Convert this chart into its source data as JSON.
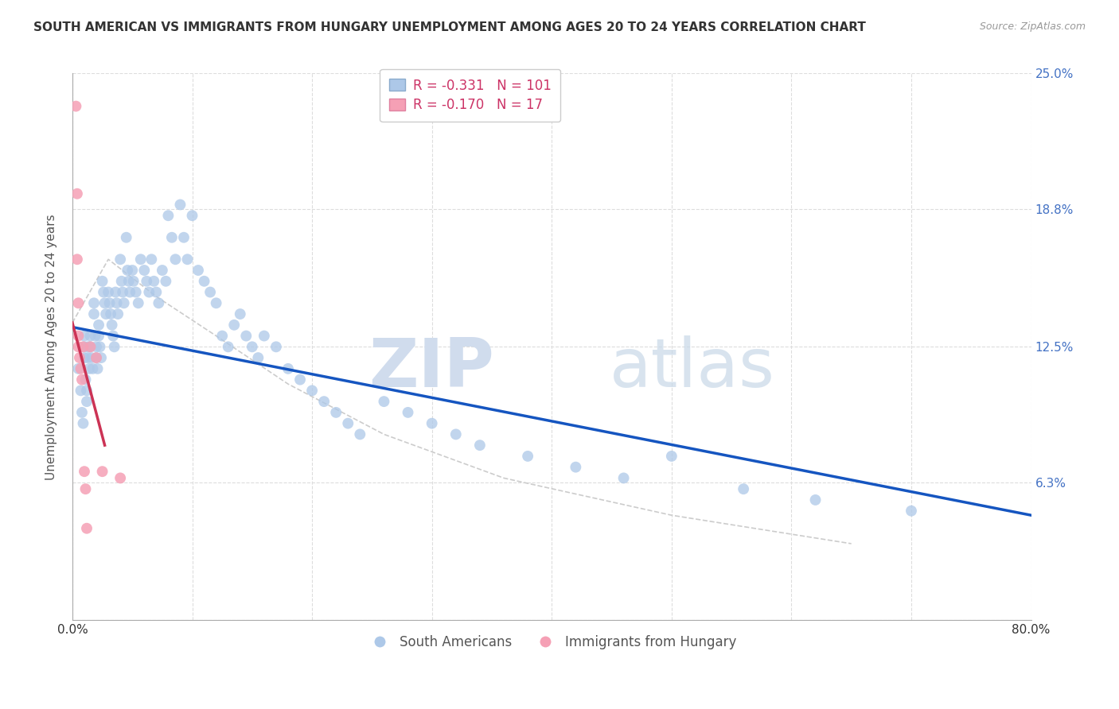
{
  "title": "SOUTH AMERICAN VS IMMIGRANTS FROM HUNGARY UNEMPLOYMENT AMONG AGES 20 TO 24 YEARS CORRELATION CHART",
  "source": "Source: ZipAtlas.com",
  "ylabel": "Unemployment Among Ages 20 to 24 years",
  "xlim": [
    0.0,
    0.8
  ],
  "ylim": [
    0.0,
    0.25
  ],
  "xticks": [
    0.0,
    0.1,
    0.2,
    0.3,
    0.4,
    0.5,
    0.6,
    0.7,
    0.8
  ],
  "xticklabels": [
    "0.0%",
    "",
    "",
    "",
    "",
    "",
    "",
    "",
    "80.0%"
  ],
  "yticks": [
    0.0,
    0.063,
    0.125,
    0.188,
    0.25
  ],
  "yticklabels": [
    "",
    "6.3%",
    "12.5%",
    "18.8%",
    "25.0%"
  ],
  "blue_R": "-0.331",
  "blue_N": "101",
  "pink_R": "-0.170",
  "pink_N": "17",
  "legend_label_blue": "South Americans",
  "legend_label_pink": "Immigrants from Hungary",
  "watermark_zip": "ZIP",
  "watermark_atlas": "atlas",
  "blue_scatter_x": [
    0.005,
    0.007,
    0.008,
    0.009,
    0.01,
    0.01,
    0.01,
    0.011,
    0.012,
    0.012,
    0.013,
    0.013,
    0.014,
    0.015,
    0.015,
    0.016,
    0.017,
    0.018,
    0.018,
    0.019,
    0.02,
    0.02,
    0.021,
    0.022,
    0.022,
    0.023,
    0.024,
    0.025,
    0.026,
    0.027,
    0.028,
    0.03,
    0.031,
    0.032,
    0.033,
    0.034,
    0.035,
    0.036,
    0.037,
    0.038,
    0.04,
    0.041,
    0.042,
    0.043,
    0.045,
    0.046,
    0.047,
    0.048,
    0.05,
    0.051,
    0.053,
    0.055,
    0.057,
    0.06,
    0.062,
    0.064,
    0.066,
    0.068,
    0.07,
    0.072,
    0.075,
    0.078,
    0.08,
    0.083,
    0.086,
    0.09,
    0.093,
    0.096,
    0.1,
    0.105,
    0.11,
    0.115,
    0.12,
    0.125,
    0.13,
    0.135,
    0.14,
    0.145,
    0.15,
    0.155,
    0.16,
    0.17,
    0.18,
    0.19,
    0.2,
    0.21,
    0.22,
    0.23,
    0.24,
    0.26,
    0.28,
    0.3,
    0.32,
    0.34,
    0.38,
    0.42,
    0.46,
    0.5,
    0.56,
    0.62,
    0.7
  ],
  "blue_scatter_y": [
    0.115,
    0.105,
    0.095,
    0.09,
    0.13,
    0.125,
    0.12,
    0.11,
    0.105,
    0.1,
    0.125,
    0.12,
    0.115,
    0.13,
    0.125,
    0.12,
    0.115,
    0.145,
    0.14,
    0.13,
    0.125,
    0.12,
    0.115,
    0.135,
    0.13,
    0.125,
    0.12,
    0.155,
    0.15,
    0.145,
    0.14,
    0.15,
    0.145,
    0.14,
    0.135,
    0.13,
    0.125,
    0.15,
    0.145,
    0.14,
    0.165,
    0.155,
    0.15,
    0.145,
    0.175,
    0.16,
    0.155,
    0.15,
    0.16,
    0.155,
    0.15,
    0.145,
    0.165,
    0.16,
    0.155,
    0.15,
    0.165,
    0.155,
    0.15,
    0.145,
    0.16,
    0.155,
    0.185,
    0.175,
    0.165,
    0.19,
    0.175,
    0.165,
    0.185,
    0.16,
    0.155,
    0.15,
    0.145,
    0.13,
    0.125,
    0.135,
    0.14,
    0.13,
    0.125,
    0.12,
    0.13,
    0.125,
    0.115,
    0.11,
    0.105,
    0.1,
    0.095,
    0.09,
    0.085,
    0.1,
    0.095,
    0.09,
    0.085,
    0.08,
    0.075,
    0.07,
    0.065,
    0.075,
    0.06,
    0.055,
    0.05
  ],
  "pink_scatter_x": [
    0.003,
    0.004,
    0.004,
    0.005,
    0.005,
    0.005,
    0.006,
    0.007,
    0.008,
    0.009,
    0.01,
    0.011,
    0.012,
    0.015,
    0.02,
    0.025,
    0.04
  ],
  "pink_scatter_y": [
    0.235,
    0.195,
    0.165,
    0.145,
    0.13,
    0.125,
    0.12,
    0.115,
    0.11,
    0.125,
    0.068,
    0.06,
    0.042,
    0.125,
    0.12,
    0.068,
    0.065
  ],
  "blue_line_x": [
    0.0,
    0.8
  ],
  "blue_line_y": [
    0.134,
    0.048
  ],
  "pink_line_x": [
    0.0,
    0.027
  ],
  "pink_line_y": [
    0.136,
    0.08
  ],
  "gray_curve_x": [
    0.0,
    0.03,
    0.07,
    0.12,
    0.18,
    0.26,
    0.36,
    0.5,
    0.65
  ],
  "gray_curve_y": [
    0.136,
    0.165,
    0.148,
    0.13,
    0.108,
    0.085,
    0.065,
    0.048,
    0.035
  ],
  "blue_color": "#adc8e8",
  "pink_color": "#f5a0b5",
  "blue_line_color": "#1555c0",
  "pink_line_color": "#cc3355",
  "gray_curve_color": "#cccccc",
  "title_color": "#333333",
  "source_color": "#999999",
  "axis_label_color": "#555555",
  "right_ytick_color": "#4472c4",
  "grid_color": "#dddddd",
  "background_color": "#ffffff",
  "legend_r_blue_color": "#cc3366",
  "legend_n_blue_color": "#1555c0",
  "legend_r_pink_color": "#cc3366",
  "legend_n_pink_color": "#1555c0"
}
